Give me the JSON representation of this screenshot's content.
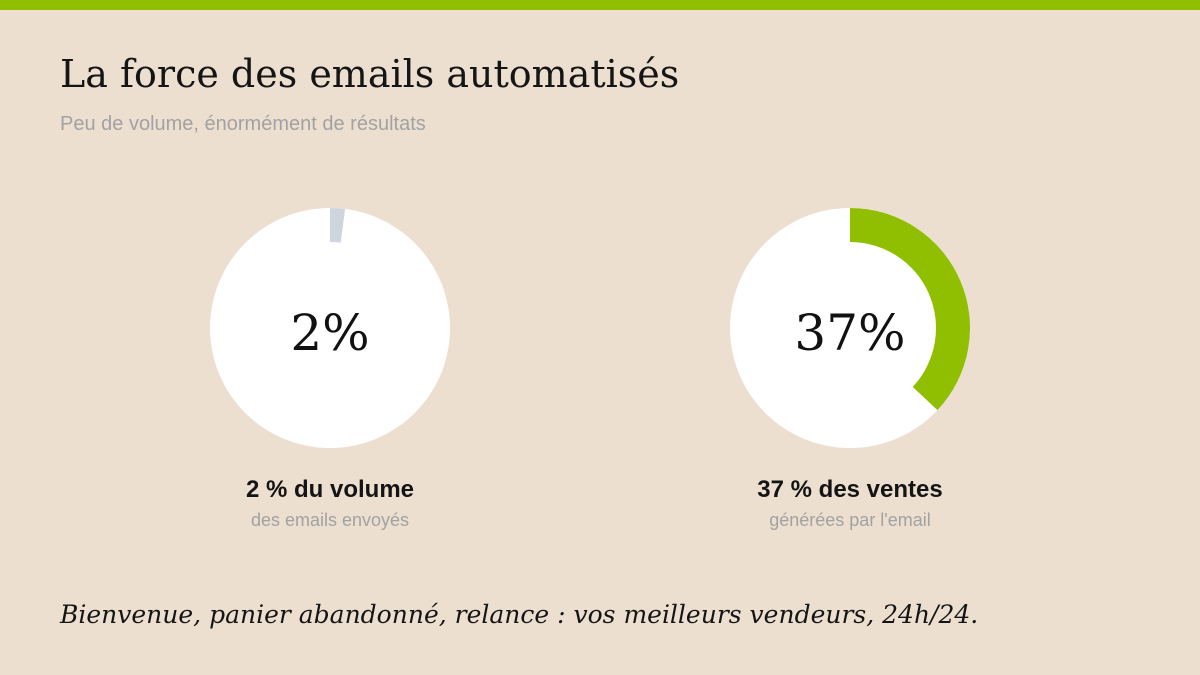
{
  "header": {
    "title": "La force des emails automatisés",
    "subtitle": "Peu de volume, énormément de résultats"
  },
  "colors": {
    "background": "#ecdfd0",
    "accent": "#8fbf00",
    "muted_slice": "#cfd5dd",
    "donut_base": "#ffffff"
  },
  "chart_data": [
    {
      "type": "pie",
      "value_percent": 2,
      "center_label": "2%",
      "label": "2 % du volume",
      "sublabel": "des emails envoyés",
      "slice_color": "#cfd5dd"
    },
    {
      "type": "pie",
      "value_percent": 37,
      "center_label": "37%",
      "label": "37 % des ventes",
      "sublabel": "générées par l'email",
      "slice_color": "#8fbf00"
    }
  ],
  "footer": {
    "text": "Bienvenue, panier abandonné, relance : vos meilleurs vendeurs, 24h/24."
  }
}
